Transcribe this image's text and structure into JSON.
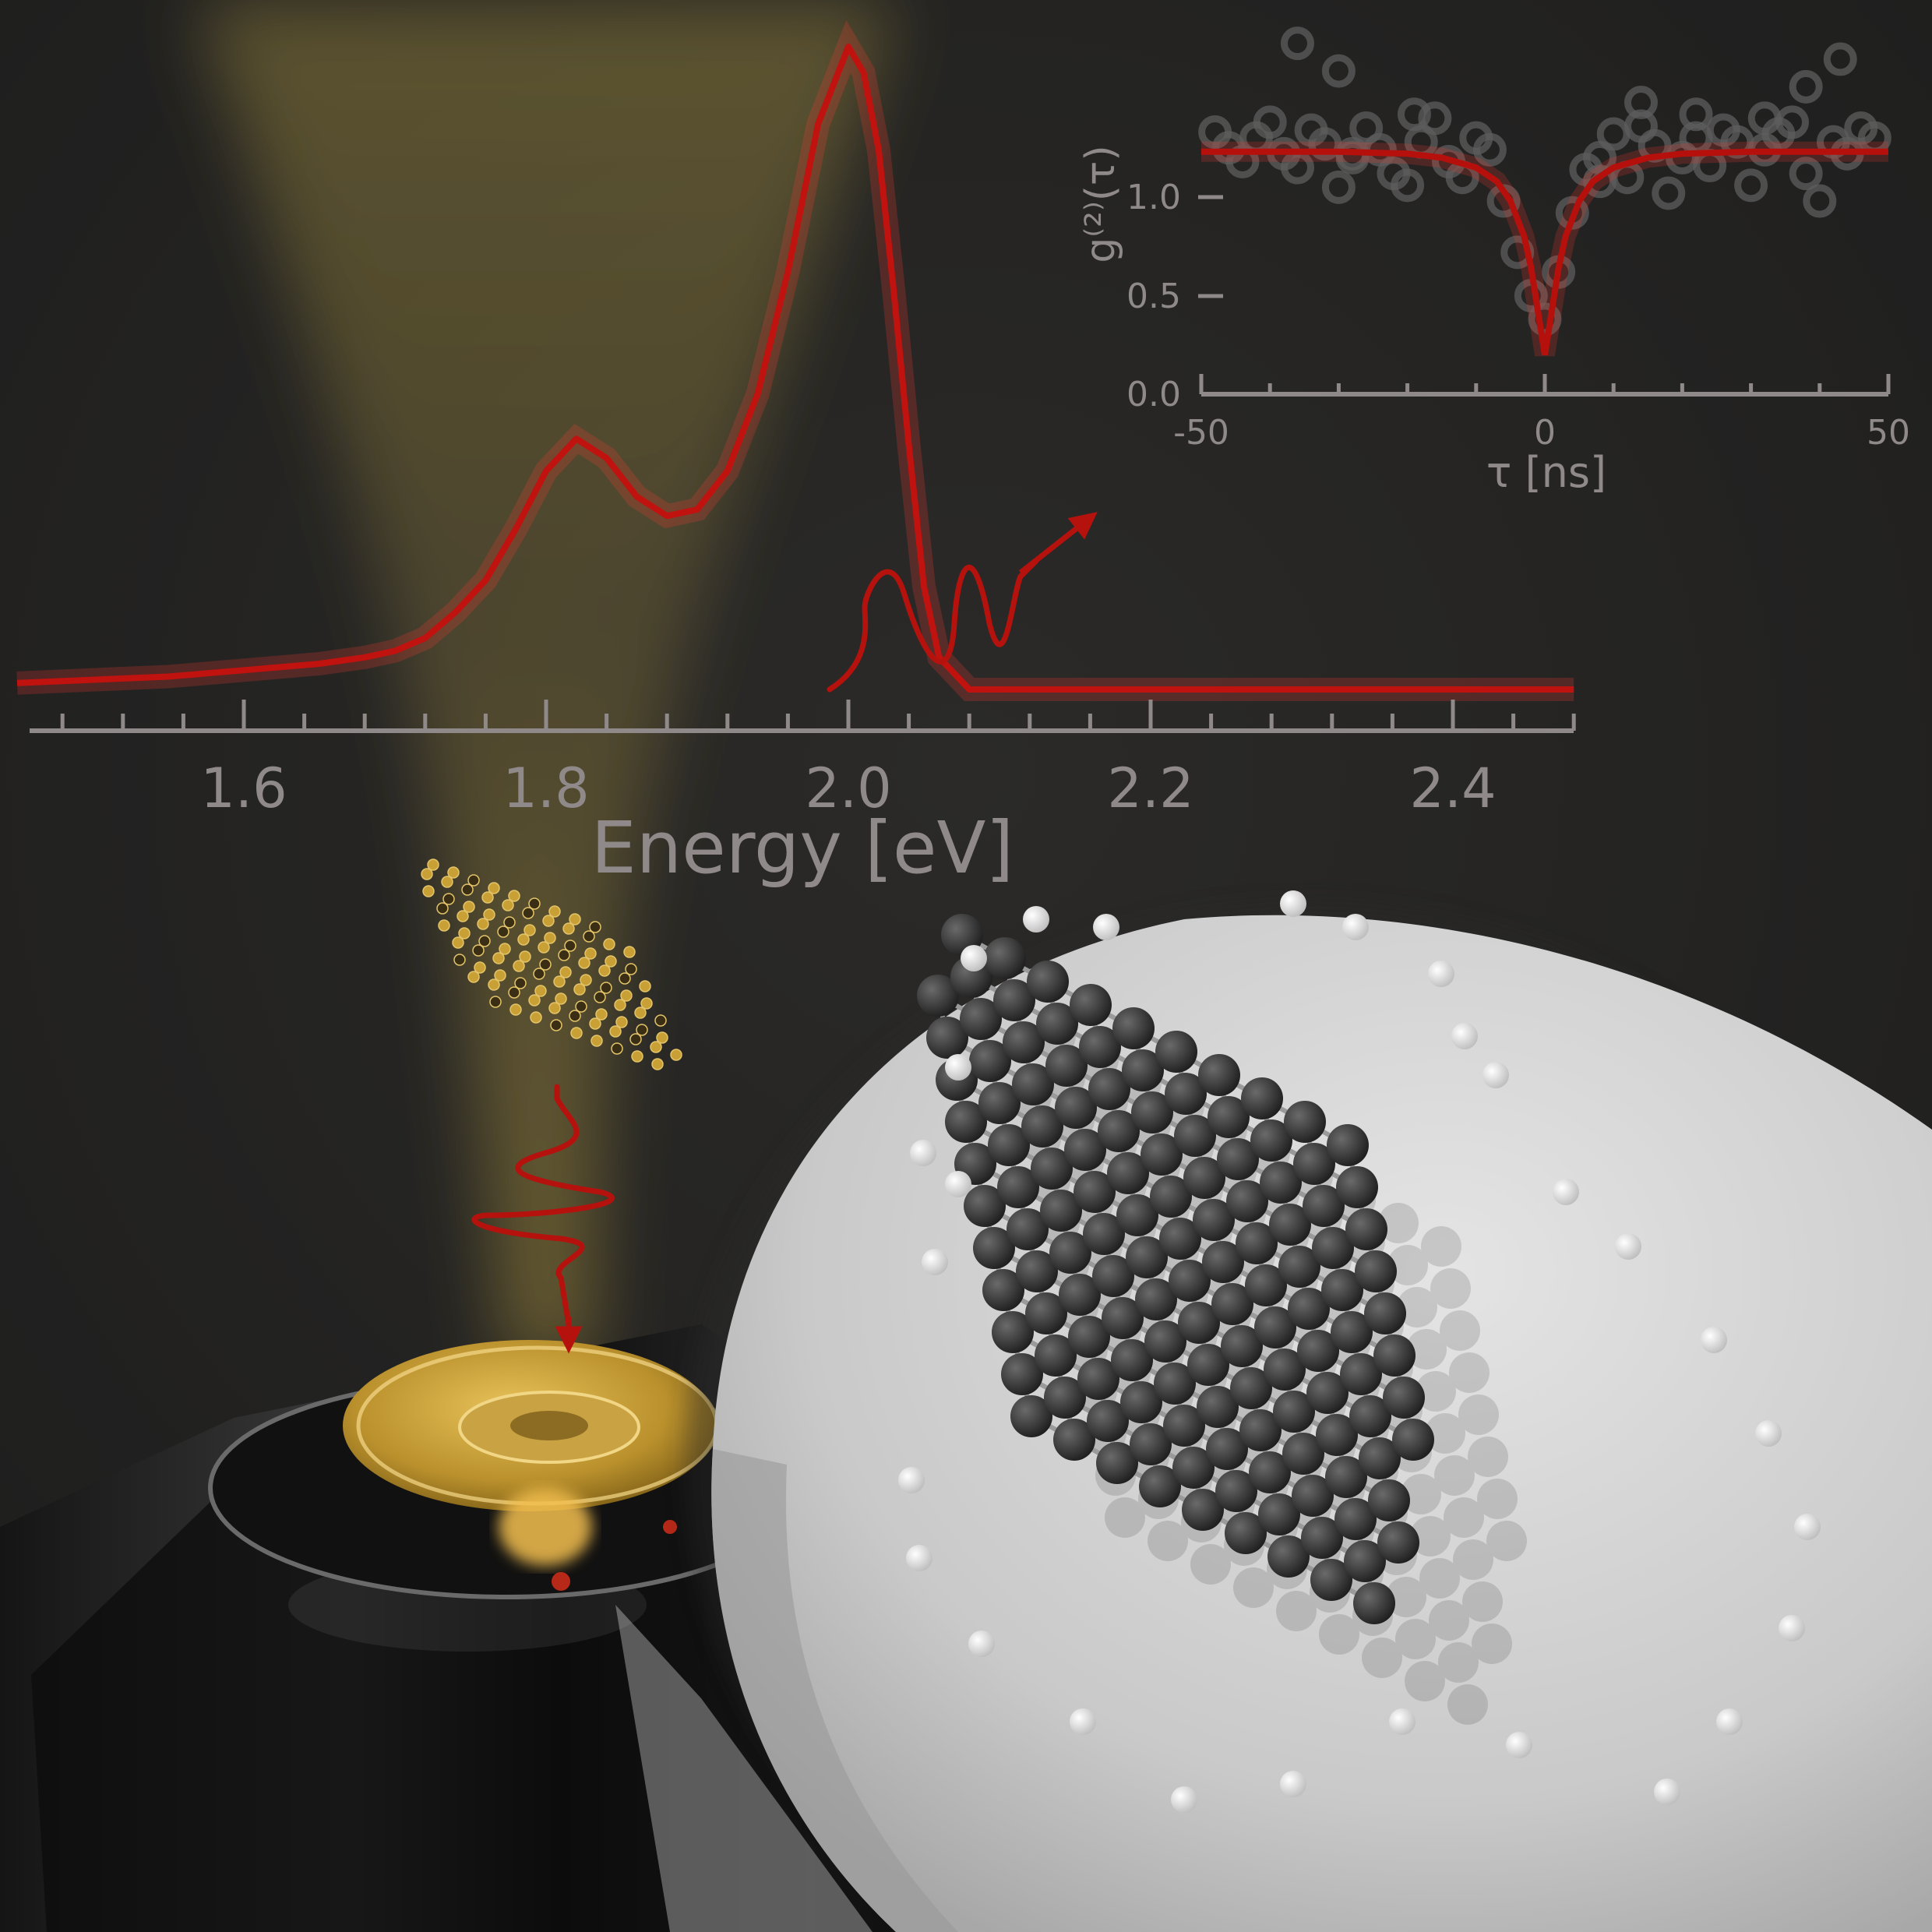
{
  "chart_data": [
    {
      "type": "line",
      "title": "",
      "xlabel": "Energy [eV]",
      "ylabel": "",
      "xlim": [
        1.45,
        2.48
      ],
      "ylim": [
        0,
        1
      ],
      "x_ticks": [
        "1.6",
        "1.8",
        "2.0",
        "2.2",
        "2.4"
      ],
      "y_axis_shown": false,
      "grid": false,
      "line_color": "#c0120e",
      "series": [
        {
          "x": [
            1.45,
            1.55,
            1.6,
            1.65,
            1.68,
            1.7,
            1.72,
            1.74,
            1.76,
            1.78,
            1.8,
            1.82,
            1.84,
            1.86,
            1.88,
            1.9,
            1.92,
            1.94,
            1.96,
            1.98,
            2.0,
            2.01,
            2.02,
            2.03,
            2.04,
            2.05,
            2.06,
            2.08,
            2.1,
            2.2,
            2.3,
            2.4,
            2.48
          ],
          "y": [
            0.01,
            0.02,
            0.03,
            0.04,
            0.05,
            0.06,
            0.08,
            0.12,
            0.17,
            0.25,
            0.34,
            0.39,
            0.36,
            0.3,
            0.27,
            0.28,
            0.34,
            0.46,
            0.65,
            0.88,
            1.0,
            0.96,
            0.84,
            0.62,
            0.38,
            0.16,
            0.05,
            0.0,
            0.0,
            0.0,
            0.0,
            0.0,
            0.0
          ]
        }
      ]
    },
    {
      "type": "scatter",
      "title": "",
      "xlabel": "τ [ns]",
      "ylabel": "g⁽²⁾(τ)",
      "xlim": [
        -50,
        50
      ],
      "ylim": [
        0,
        1.55
      ],
      "x_ticks": [
        "-50",
        "0",
        "50"
      ],
      "y_ticks": [
        "0.0",
        "0.5",
        "1.0"
      ],
      "grid": false,
      "marker": "open-circle",
      "fit_color": "#b5100c",
      "points": {
        "x": [
          -48,
          -46,
          -44,
          -42,
          -40,
          -38,
          -36,
          -34,
          -32,
          -30,
          -28,
          -26,
          -24,
          -22,
          -20,
          -18,
          -16,
          -14,
          -12,
          -10,
          -8,
          -6,
          -4,
          -2,
          0,
          2,
          4,
          6,
          8,
          10,
          12,
          14,
          16,
          18,
          20,
          22,
          24,
          26,
          28,
          30,
          32,
          34,
          36,
          38,
          40,
          42,
          44,
          46,
          48,
          -36,
          -28,
          -19,
          8,
          22,
          38,
          43,
          -30,
          14,
          32
        ],
        "y": [
          1.33,
          1.25,
          1.18,
          1.3,
          1.38,
          1.22,
          1.15,
          1.34,
          1.27,
          1.05,
          1.2,
          1.35,
          1.24,
          1.12,
          1.06,
          1.28,
          1.4,
          1.18,
          1.1,
          1.3,
          1.24,
          0.98,
          0.72,
          0.5,
          0.38,
          0.62,
          0.92,
          1.14,
          1.2,
          1.32,
          1.1,
          1.36,
          1.26,
          1.02,
          1.2,
          1.3,
          1.16,
          1.34,
          1.28,
          1.06,
          1.24,
          1.32,
          1.38,
          1.12,
          0.98,
          1.28,
          1.22,
          1.35,
          1.3,
          1.78,
          1.22,
          1.42,
          1.08,
          1.42,
          1.56,
          1.7,
          1.64,
          1.48,
          1.4
        ]
      },
      "fit": {
        "x": [
          -50,
          -30,
          -20,
          -15,
          -10,
          -7,
          -5,
          -3,
          -2,
          -1,
          0,
          1,
          2,
          3,
          5,
          7,
          10,
          15,
          20,
          30,
          50
        ],
        "y": [
          1.23,
          1.23,
          1.22,
          1.2,
          1.15,
          1.08,
          0.98,
          0.8,
          0.64,
          0.42,
          0.2,
          0.42,
          0.64,
          0.8,
          0.98,
          1.08,
          1.15,
          1.2,
          1.22,
          1.23,
          1.23
        ]
      }
    }
  ]
}
